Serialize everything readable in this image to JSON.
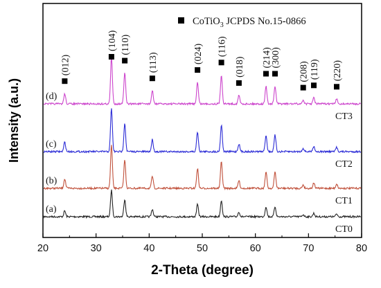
{
  "chart_data": {
    "type": "line",
    "xlabel": "2-Theta (degree)",
    "ylabel": "Intensity (a.u.)",
    "xlim": [
      20,
      80
    ],
    "xticks": [
      20,
      30,
      40,
      50,
      60,
      70,
      80
    ],
    "xtick_labels": [
      "20",
      "30",
      "40",
      "50",
      "60",
      "70",
      "80"
    ],
    "grid": false,
    "legend": {
      "placement": "top-right",
      "marker": "filled-square",
      "text_main": "CoTiO",
      "text_sub": "3",
      "text_tail": "  JCPDS No.15-0866"
    },
    "peaks": [
      {
        "hkl": "(012)",
        "x": 24.1,
        "rel": 0.22
      },
      {
        "hkl": "(104)",
        "x": 32.9,
        "rel": 1.0
      },
      {
        "hkl": "(110)",
        "x": 35.4,
        "rel": 0.66
      },
      {
        "hkl": "(113)",
        "x": 40.6,
        "rel": 0.28
      },
      {
        "hkl": "(024)",
        "x": 49.1,
        "rel": 0.46
      },
      {
        "hkl": "(116)",
        "x": 53.6,
        "rel": 0.62
      },
      {
        "hkl": "(018)",
        "x": 56.9,
        "rel": 0.18
      },
      {
        "hkl": "(214)",
        "x": 62.0,
        "rel": 0.38
      },
      {
        "hkl": "(300)",
        "x": 63.7,
        "rel": 0.38
      },
      {
        "hkl": "(208)",
        "x": 69.0,
        "rel": 0.08
      },
      {
        "hkl": "(119)",
        "x": 71.0,
        "rel": 0.13
      },
      {
        "hkl": "(220)",
        "x": 75.3,
        "rel": 0.1
      }
    ],
    "series": [
      {
        "name": "CT0",
        "letter": "(a)",
        "color": "#222222",
        "offset": 0,
        "scale": 0.32
      },
      {
        "name": "CT1",
        "letter": "(b)",
        "color": "#c0503a",
        "offset": 1,
        "scale": 0.52
      },
      {
        "name": "CT2",
        "letter": "(c)",
        "color": "#2b2bd6",
        "offset": 2,
        "scale": 0.52
      },
      {
        "name": "CT3",
        "letter": "(d)",
        "color": "#cc44cc",
        "offset": 3,
        "scale": 0.56
      }
    ]
  }
}
